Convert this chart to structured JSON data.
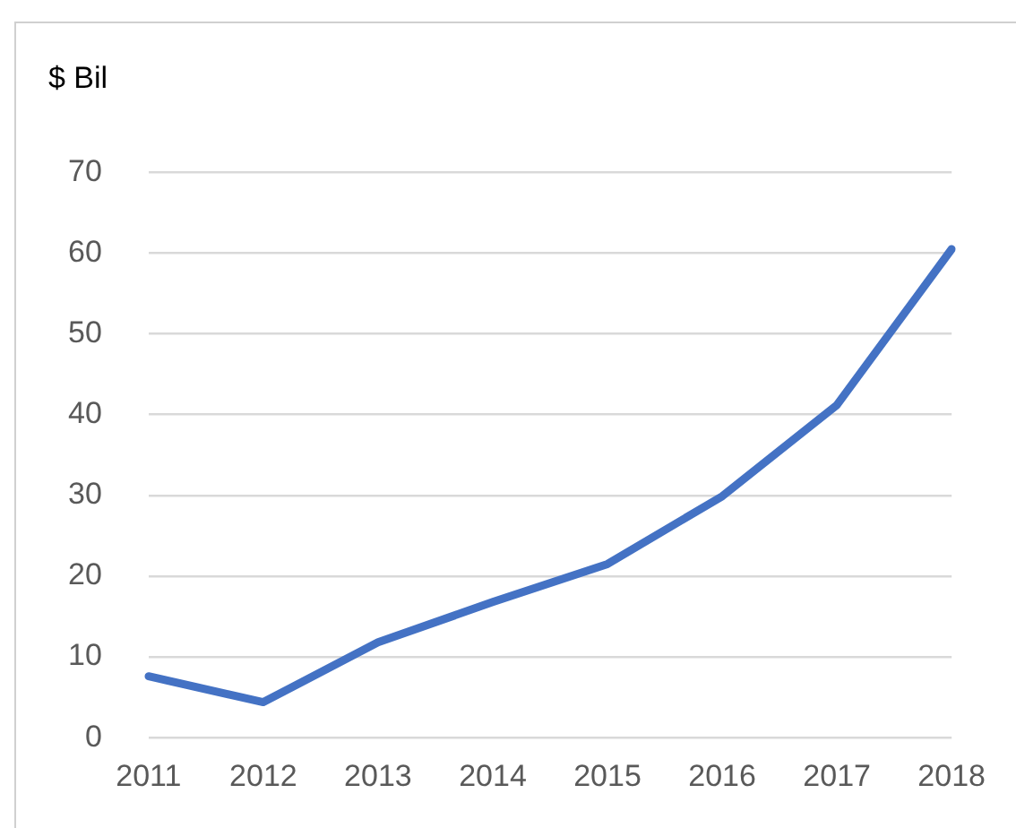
{
  "chart_data": {
    "type": "line",
    "ylabel": "$ Bil",
    "categories": [
      "2011",
      "2012",
      "2013",
      "2014",
      "2015",
      "2016",
      "2017",
      "2018"
    ],
    "series": [
      {
        "color": "#4472c4",
        "values": [
          7.6,
          4.4,
          11.8,
          16.8,
          21.5,
          29.9,
          41.2,
          60.5
        ]
      }
    ],
    "ylim": [
      0,
      70
    ],
    "yticks": [
      0,
      10,
      20,
      30,
      40,
      50,
      60,
      70
    ],
    "grid": "y",
    "legend": false,
    "marker": "none",
    "line_style": "solid"
  }
}
